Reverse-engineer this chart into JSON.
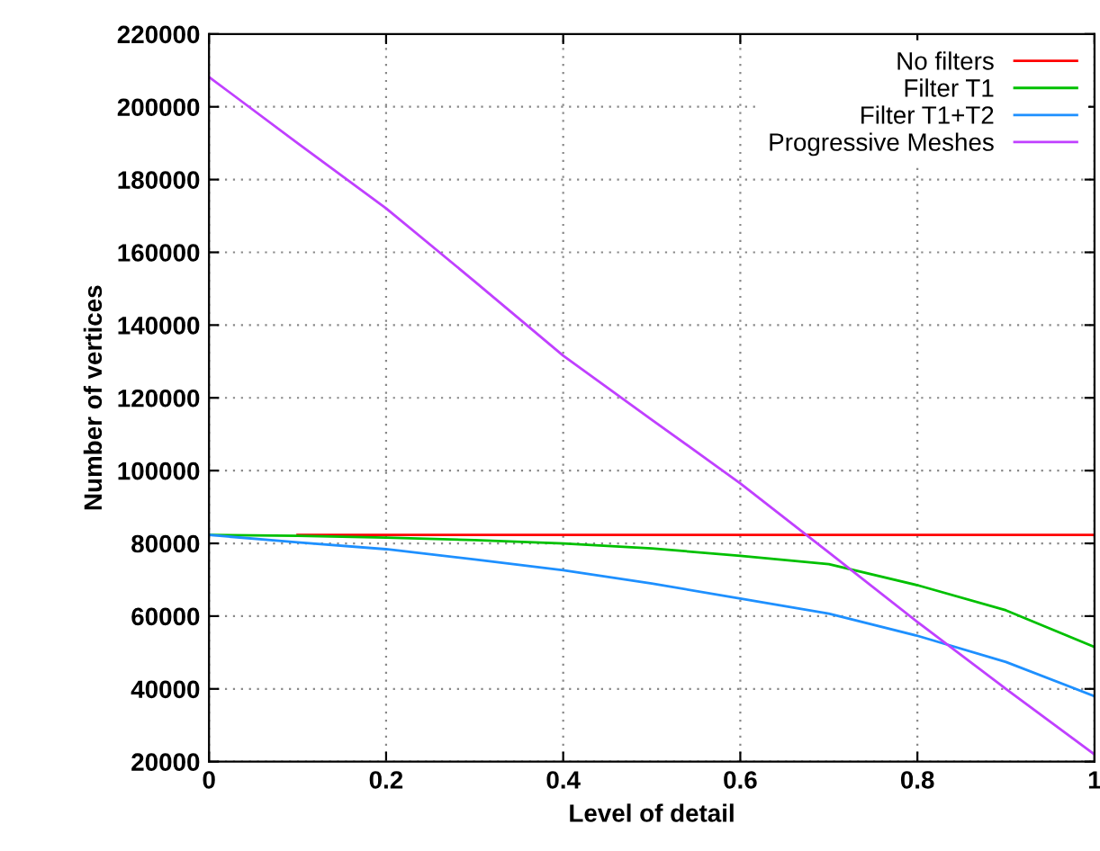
{
  "chart_data": {
    "type": "line",
    "xlabel": "Level of detail",
    "ylabel": "Number of vertices",
    "x": [
      0,
      0.1,
      0.2,
      0.3,
      0.4,
      0.5,
      0.6,
      0.7,
      0.8,
      0.9,
      1
    ],
    "series": [
      {
        "name": "No filters",
        "color": "#ff0000",
        "values": [
          null,
          82300,
          82300,
          82300,
          82300,
          82300,
          82300,
          82300,
          82300,
          82300,
          82300
        ]
      },
      {
        "name": "Filter T1",
        "color": "#00c000",
        "values": [
          82300,
          82100,
          81600,
          80900,
          80000,
          78600,
          76600,
          74300,
          68500,
          61600,
          51500
        ]
      },
      {
        "name": "Filter T1+T2",
        "color": "#1e90ff",
        "values": [
          82300,
          80300,
          78400,
          75600,
          72600,
          69000,
          64800,
          60700,
          54600,
          47400,
          38000
        ]
      },
      {
        "name": "Progressive Meshes",
        "color": "#c040ff",
        "values": [
          208200,
          190000,
          172100,
          152000,
          131600,
          114000,
          96500,
          77500,
          58400,
          40000,
          22000
        ]
      }
    ],
    "xlim": [
      0,
      1
    ],
    "xticks": [
      0,
      0.2,
      0.4,
      0.6,
      0.8,
      1
    ],
    "ylim": [
      20000,
      220000
    ],
    "yticks": [
      20000,
      40000,
      60000,
      80000,
      100000,
      120000,
      140000,
      160000,
      180000,
      200000,
      220000
    ],
    "grid": true,
    "legend": "top right"
  }
}
